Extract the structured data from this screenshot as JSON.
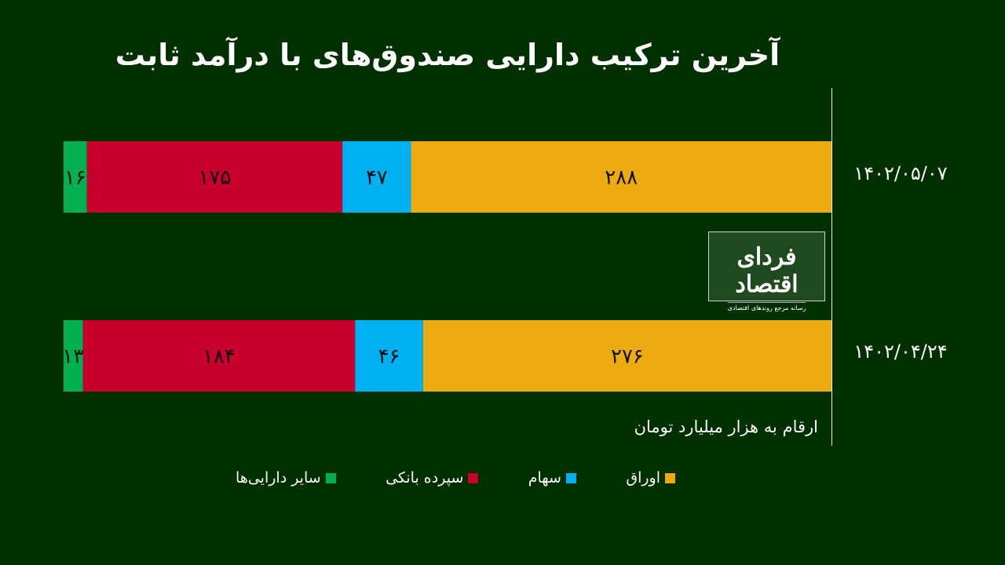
{
  "chart_data": {
    "type": "bar",
    "orientation": "horizontal",
    "stacking": "percent",
    "title": "آخرین ترکیب دارایی صندوق‌های با درآمد ثابت",
    "note": "ارقام به هزار میلیارد تومان",
    "categories": [
      "۱۴۰۲/۰۵/۰۷",
      "۱۴۰۲/۰۴/۲۴"
    ],
    "series": [
      {
        "name": "سایر دارایی‌ها",
        "color": "#00b050",
        "values": [
          16,
          13
        ]
      },
      {
        "name": "سپرده بانکی",
        "color": "#c8002e",
        "values": [
          175,
          184
        ]
      },
      {
        "name": "سهام",
        "color": "#00b0f0",
        "values": [
          47,
          46
        ]
      },
      {
        "name": "اوراق",
        "color": "#eeaa11",
        "values": [
          288,
          276
        ]
      }
    ],
    "legend_position": "bottom",
    "grid": false
  },
  "logo": {
    "name": "فردای اقتصاد",
    "tagline": "رسانه مرجع روندهای اقتصادی"
  }
}
